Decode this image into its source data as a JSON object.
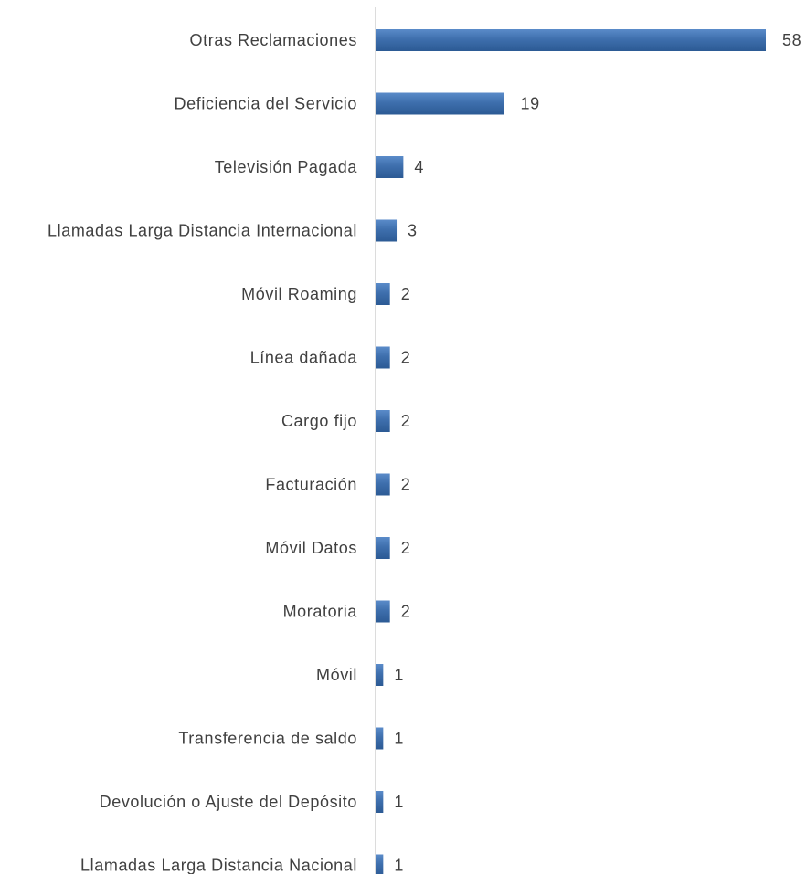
{
  "chart_data": {
    "type": "bar",
    "orientation": "horizontal",
    "categories": [
      "Otras Reclamaciones",
      "Deficiencia del Servicio",
      "Televisión Pagada",
      "Llamadas Larga Distancia Internacional",
      "Móvil Roaming",
      "Línea dañada",
      "Cargo fijo",
      "Facturación",
      "Móvil Datos",
      "Moratoria",
      "Móvil",
      "Transferencia de saldo",
      "Devolución o Ajuste del Depósito",
      "Llamadas Larga Distancia Nacional"
    ],
    "values": [
      58,
      19,
      4,
      3,
      2,
      2,
      2,
      2,
      2,
      2,
      1,
      1,
      1,
      1
    ],
    "title": "",
    "xlabel": "",
    "ylabel": "",
    "grid": false,
    "data_labels": true,
    "bar_color": "#3e6fad",
    "bar_color_light": "#5a8bc9",
    "bar_color_dark": "#2c5a94"
  }
}
